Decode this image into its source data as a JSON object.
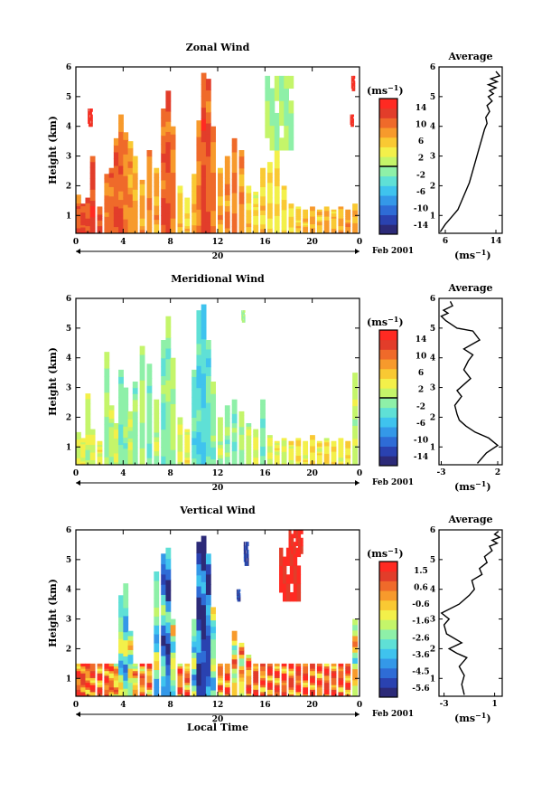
{
  "figure": {
    "date_label": "Feb 2001",
    "date_day": "20",
    "xlabel_bottom": "Local Time",
    "avg_title": "Average",
    "unit": "(ms⁻¹)",
    "ylabel": "Height (km)"
  },
  "chart_data": [
    {
      "type": "heatmap",
      "title": "Zonal Wind",
      "xlabel": "Local Time",
      "ylabel": "Height (km)",
      "x_ticks": [
        "0",
        "4",
        "8",
        "12",
        "16",
        "20",
        "0"
      ],
      "x_range": [
        0,
        24
      ],
      "y_ticks": [
        "1",
        "2",
        "3",
        "4",
        "5",
        "6"
      ],
      "y_range": [
        0.4,
        6
      ],
      "colorbar": {
        "unit": "(ms⁻¹)",
        "ticks": [
          "14",
          "10",
          "6",
          "2",
          "-2",
          "-6",
          "-10",
          "-14"
        ],
        "range": [
          -16,
          16
        ]
      },
      "columns": [
        {
          "t": 0.2,
          "top": 1.7,
          "v": 11
        },
        {
          "t": 0.6,
          "top": 1.4,
          "v": 13
        },
        {
          "t": 1.0,
          "top": 1.6,
          "v": 12
        },
        {
          "t": 1.4,
          "top": 3.0,
          "v": 13
        },
        {
          "t": 2.0,
          "top": 1.3,
          "v": 12
        },
        {
          "t": 2.6,
          "top": 2.4,
          "v": 10
        },
        {
          "t": 3.0,
          "top": 2.6,
          "v": 11
        },
        {
          "t": 3.4,
          "top": 3.6,
          "v": 12
        },
        {
          "t": 3.8,
          "top": 4.4,
          "v": 11
        },
        {
          "t": 4.2,
          "top": 3.8,
          "v": 10
        },
        {
          "t": 4.6,
          "top": 3.5,
          "v": 9
        },
        {
          "t": 5.0,
          "top": 3.0,
          "v": 8
        },
        {
          "t": 5.6,
          "top": 2.2,
          "v": 8
        },
        {
          "t": 6.2,
          "top": 3.2,
          "v": 9
        },
        {
          "t": 6.8,
          "top": 2.6,
          "v": 8
        },
        {
          "t": 7.4,
          "top": 4.6,
          "v": 11
        },
        {
          "t": 7.8,
          "top": 5.2,
          "v": 12
        },
        {
          "t": 8.2,
          "top": 4.0,
          "v": 10
        },
        {
          "t": 8.8,
          "top": 2.0,
          "v": 6
        },
        {
          "t": 9.4,
          "top": 1.6,
          "v": 5
        },
        {
          "t": 10.0,
          "top": 2.4,
          "v": 7
        },
        {
          "t": 10.4,
          "top": 4.2,
          "v": 10
        },
        {
          "t": 10.8,
          "top": 5.8,
          "v": 13
        },
        {
          "t": 11.2,
          "top": 5.6,
          "v": 12
        },
        {
          "t": 11.6,
          "top": 4.0,
          "v": 10
        },
        {
          "t": 12.2,
          "top": 2.6,
          "v": 8
        },
        {
          "t": 12.8,
          "top": 3.0,
          "v": 9
        },
        {
          "t": 13.4,
          "top": 3.6,
          "v": 10
        },
        {
          "t": 14.0,
          "top": 3.2,
          "v": 9
        },
        {
          "t": 14.6,
          "top": 2.0,
          "v": 6
        },
        {
          "t": 15.2,
          "top": 1.8,
          "v": 5
        },
        {
          "t": 15.8,
          "top": 2.6,
          "v": 6
        },
        {
          "t": 16.4,
          "top": 2.8,
          "v": 5
        },
        {
          "t": 17.0,
          "top": 3.2,
          "v": 4
        },
        {
          "t": 17.6,
          "top": 2.0,
          "v": 4
        },
        {
          "t": 18.2,
          "top": 1.4,
          "v": 5
        },
        {
          "t": 18.8,
          "top": 1.3,
          "v": 6
        },
        {
          "t": 19.4,
          "top": 1.2,
          "v": 7
        },
        {
          "t": 20.0,
          "top": 1.3,
          "v": 8
        },
        {
          "t": 20.6,
          "top": 1.2,
          "v": 7
        },
        {
          "t": 21.2,
          "top": 1.3,
          "v": 8
        },
        {
          "t": 21.8,
          "top": 1.2,
          "v": 7
        },
        {
          "t": 22.4,
          "top": 1.3,
          "v": 8
        },
        {
          "t": 23.0,
          "top": 1.2,
          "v": 9
        },
        {
          "t": 23.6,
          "top": 1.4,
          "v": 8
        }
      ],
      "patches": [
        {
          "t0": 16.0,
          "t1": 18.4,
          "z0": 3.2,
          "z1": 5.7,
          "v": 0
        },
        {
          "t0": 1.0,
          "t1": 1.4,
          "z0": 4.0,
          "z1": 4.6,
          "v": 14
        },
        {
          "t0": 23.2,
          "t1": 23.5,
          "z0": 4.0,
          "z1": 4.4,
          "v": 14
        },
        {
          "t0": 23.3,
          "t1": 23.6,
          "z0": 5.2,
          "z1": 5.7,
          "v": 14
        }
      ],
      "avg_profile": {
        "title": "Average",
        "xlabel": "(ms⁻¹)",
        "x_ticks": [
          "6",
          "14"
        ],
        "xlim": [
          5,
          15
        ],
        "y_ticks": [
          "1",
          "2",
          "3",
          "4",
          "5",
          "6"
        ],
        "ylim": [
          0.4,
          6
        ],
        "x": [
          5.2,
          6.0,
          7.0,
          8.0,
          8.6,
          9.2,
          9.8,
          10.2,
          10.6,
          11.0,
          11.4,
          11.8,
          12.2,
          12.6,
          12.4,
          13.0,
          12.6,
          13.4,
          12.8,
          13.6,
          13.0,
          14.0,
          12.8,
          14.2,
          13.2,
          14.6,
          14.0
        ],
        "y": [
          0.45,
          0.7,
          0.95,
          1.2,
          1.5,
          1.8,
          2.1,
          2.4,
          2.7,
          3.0,
          3.3,
          3.6,
          3.9,
          4.1,
          4.3,
          4.5,
          4.7,
          4.85,
          5.0,
          5.1,
          5.2,
          5.3,
          5.4,
          5.5,
          5.6,
          5.7,
          5.85
        ]
      }
    },
    {
      "type": "heatmap",
      "title": "Meridional Wind",
      "xlabel": "Local Time",
      "ylabel": "Height (km)",
      "x_ticks": [
        "0",
        "4",
        "8",
        "12",
        "16",
        "20",
        "0"
      ],
      "x_range": [
        0,
        24
      ],
      "y_ticks": [
        "1",
        "2",
        "3",
        "4",
        "5",
        "6"
      ],
      "y_range": [
        0.4,
        6
      ],
      "colorbar": {
        "unit": "(ms⁻¹)",
        "ticks": [
          "14",
          "10",
          "6",
          "2",
          "-2",
          "-6",
          "-10",
          "-14"
        ],
        "range": [
          -16,
          16
        ]
      },
      "columns": [
        {
          "t": 0.2,
          "top": 1.5,
          "v": 2
        },
        {
          "t": 0.6,
          "top": 1.3,
          "v": 3
        },
        {
          "t": 1.0,
          "top": 2.8,
          "v": 1
        },
        {
          "t": 1.4,
          "top": 1.6,
          "v": 2
        },
        {
          "t": 2.0,
          "top": 1.2,
          "v": 3
        },
        {
          "t": 2.6,
          "top": 4.2,
          "v": 0
        },
        {
          "t": 3.0,
          "top": 2.4,
          "v": 1
        },
        {
          "t": 3.4,
          "top": 1.8,
          "v": 2
        },
        {
          "t": 3.8,
          "top": 3.6,
          "v": -2
        },
        {
          "t": 4.2,
          "top": 3.0,
          "v": -1
        },
        {
          "t": 4.6,
          "top": 2.2,
          "v": 1
        },
        {
          "t": 5.0,
          "top": 3.2,
          "v": -1
        },
        {
          "t": 5.6,
          "top": 4.4,
          "v": 0
        },
        {
          "t": 6.2,
          "top": 3.8,
          "v": -2
        },
        {
          "t": 6.8,
          "top": 2.6,
          "v": 1
        },
        {
          "t": 7.4,
          "top": 4.6,
          "v": -2
        },
        {
          "t": 7.8,
          "top": 5.4,
          "v": -1
        },
        {
          "t": 8.2,
          "top": 4.0,
          "v": 0
        },
        {
          "t": 8.8,
          "top": 2.0,
          "v": 2
        },
        {
          "t": 9.4,
          "top": 1.6,
          "v": 3
        },
        {
          "t": 10.0,
          "top": 3.6,
          "v": -3
        },
        {
          "t": 10.4,
          "top": 5.6,
          "v": -4
        },
        {
          "t": 10.8,
          "top": 5.8,
          "v": -5
        },
        {
          "t": 11.2,
          "top": 4.6,
          "v": -3
        },
        {
          "t": 11.6,
          "top": 3.2,
          "v": -1
        },
        {
          "t": 12.2,
          "top": 2.0,
          "v": 1
        },
        {
          "t": 12.8,
          "top": 2.4,
          "v": -1
        },
        {
          "t": 13.4,
          "top": 2.6,
          "v": -2
        },
        {
          "t": 14.0,
          "top": 2.2,
          "v": 0
        },
        {
          "t": 14.6,
          "top": 1.8,
          "v": 1
        },
        {
          "t": 15.2,
          "top": 1.6,
          "v": 2
        },
        {
          "t": 15.8,
          "top": 2.6,
          "v": -2
        },
        {
          "t": 16.4,
          "top": 1.4,
          "v": 2
        },
        {
          "t": 17.0,
          "top": 1.2,
          "v": 3
        },
        {
          "t": 17.6,
          "top": 1.3,
          "v": 2
        },
        {
          "t": 18.2,
          "top": 1.2,
          "v": 3
        },
        {
          "t": 18.8,
          "top": 1.3,
          "v": 4
        },
        {
          "t": 19.4,
          "top": 1.2,
          "v": 3
        },
        {
          "t": 20.0,
          "top": 1.4,
          "v": 4
        },
        {
          "t": 20.6,
          "top": 1.2,
          "v": 3
        },
        {
          "t": 21.2,
          "top": 1.3,
          "v": 5
        },
        {
          "t": 21.8,
          "top": 1.2,
          "v": 4
        },
        {
          "t": 22.4,
          "top": 1.3,
          "v": 3
        },
        {
          "t": 23.0,
          "top": 1.2,
          "v": 4
        },
        {
          "t": 23.6,
          "top": 3.5,
          "v": 1
        }
      ],
      "patches": [
        {
          "t0": 14.0,
          "t1": 14.3,
          "z0": 5.2,
          "z1": 5.6,
          "v": 0
        }
      ],
      "avg_profile": {
        "title": "Average",
        "xlabel": "(ms⁻¹)",
        "x_ticks": [
          "-3",
          "2"
        ],
        "xlim": [
          -3.2,
          2.4
        ],
        "y_ticks": [
          "1",
          "2",
          "3",
          "4",
          "5",
          "6"
        ],
        "ylim": [
          0.4,
          6
        ],
        "x": [
          0.2,
          1.0,
          2.0,
          1.2,
          0.0,
          -0.8,
          -1.4,
          -1.6,
          -1.8,
          -1.2,
          -1.6,
          -1.0,
          -0.4,
          -1.0,
          -0.6,
          -0.2,
          -1.0,
          0.4,
          -0.2,
          -1.6,
          -2.2,
          -2.6,
          -3.0,
          -2.4,
          -2.8,
          -2.0,
          -2.2
        ],
        "y": [
          0.45,
          0.8,
          1.05,
          1.3,
          1.5,
          1.7,
          1.9,
          2.1,
          2.4,
          2.7,
          2.9,
          3.1,
          3.3,
          3.6,
          3.9,
          4.1,
          4.3,
          4.6,
          4.9,
          5.0,
          5.15,
          5.25,
          5.4,
          5.5,
          5.6,
          5.75,
          5.9
        ]
      }
    },
    {
      "type": "heatmap",
      "title": "Vertical Wind",
      "xlabel": "Local Time",
      "ylabel": "Height (km)",
      "x_ticks": [
        "0",
        "4",
        "8",
        "12",
        "16",
        "20",
        "0"
      ],
      "x_range": [
        0,
        24
      ],
      "y_ticks": [
        "1",
        "2",
        "3",
        "4",
        "5",
        "6"
      ],
      "y_range": [
        0.4,
        6
      ],
      "colorbar": {
        "unit": "(ms⁻¹)",
        "ticks": [
          "1.5",
          "0.6",
          "-0.6",
          "-1.6",
          "-2.6",
          "-3.6",
          "-4.5",
          "-5.6"
        ],
        "range": [
          -6.0,
          2.0
        ]
      },
      "columns": [
        {
          "t": 0.2,
          "top": 1.5,
          "v": 0.6
        },
        {
          "t": 0.6,
          "top": 1.5,
          "v": 0.8
        },
        {
          "t": 1.0,
          "top": 1.5,
          "v": 0.4
        },
        {
          "t": 1.4,
          "top": 1.5,
          "v": 0.7
        },
        {
          "t": 2.0,
          "top": 1.5,
          "v": 0.5
        },
        {
          "t": 2.6,
          "top": 1.5,
          "v": 0.8
        },
        {
          "t": 3.0,
          "top": 1.5,
          "v": 0.2
        },
        {
          "t": 3.4,
          "top": 1.5,
          "v": -0.4
        },
        {
          "t": 3.8,
          "top": 3.8,
          "v": -2.2
        },
        {
          "t": 4.2,
          "top": 4.2,
          "v": -2.8
        },
        {
          "t": 4.6,
          "top": 2.6,
          "v": -1.8
        },
        {
          "t": 5.0,
          "top": 1.5,
          "v": -0.6
        },
        {
          "t": 5.6,
          "top": 1.5,
          "v": 0.3
        },
        {
          "t": 6.2,
          "top": 1.5,
          "v": 0.2
        },
        {
          "t": 6.8,
          "top": 4.6,
          "v": -2.6
        },
        {
          "t": 7.4,
          "top": 5.2,
          "v": -3.8
        },
        {
          "t": 7.8,
          "top": 5.4,
          "v": -4.4
        },
        {
          "t": 8.2,
          "top": 3.0,
          "v": -2.0
        },
        {
          "t": 8.8,
          "top": 1.5,
          "v": 0.4
        },
        {
          "t": 9.4,
          "top": 1.5,
          "v": 0.2
        },
        {
          "t": 10.0,
          "top": 3.0,
          "v": -2.6
        },
        {
          "t": 10.4,
          "top": 5.6,
          "v": -5.0
        },
        {
          "t": 10.8,
          "top": 5.8,
          "v": -5.4
        },
        {
          "t": 11.2,
          "top": 5.2,
          "v": -4.6
        },
        {
          "t": 11.6,
          "top": 3.4,
          "v": -2.4
        },
        {
          "t": 12.2,
          "top": 1.5,
          "v": 0.1
        },
        {
          "t": 12.8,
          "top": 1.5,
          "v": 0.6
        },
        {
          "t": 13.4,
          "top": 2.6,
          "v": -1.0
        },
        {
          "t": 14.0,
          "top": 2.2,
          "v": -0.8
        },
        {
          "t": 14.6,
          "top": 1.8,
          "v": 0.3
        },
        {
          "t": 15.2,
          "top": 1.5,
          "v": 0.8
        },
        {
          "t": 15.8,
          "top": 1.5,
          "v": 0.5
        },
        {
          "t": 16.4,
          "top": 1.5,
          "v": 0.9
        },
        {
          "t": 17.0,
          "top": 1.5,
          "v": 0.6
        },
        {
          "t": 17.6,
          "top": 1.5,
          "v": 0.8
        },
        {
          "t": 18.2,
          "top": 1.5,
          "v": 0.5
        },
        {
          "t": 18.8,
          "top": 1.5,
          "v": 0.9
        },
        {
          "t": 19.4,
          "top": 1.5,
          "v": 0.7
        },
        {
          "t": 20.0,
          "top": 1.5,
          "v": 0.8
        },
        {
          "t": 20.6,
          "top": 1.5,
          "v": 0.6
        },
        {
          "t": 21.2,
          "top": 1.5,
          "v": 0.9
        },
        {
          "t": 21.8,
          "top": 1.5,
          "v": 0.7
        },
        {
          "t": 22.4,
          "top": 1.5,
          "v": 0.8
        },
        {
          "t": 23.0,
          "top": 1.5,
          "v": 0.6
        },
        {
          "t": 23.6,
          "top": 3.0,
          "v": -1.2
        }
      ],
      "patches": [
        {
          "t0": 17.2,
          "t1": 19.0,
          "z0": 3.6,
          "z1": 5.4,
          "v": 1.8
        },
        {
          "t0": 18.0,
          "t1": 19.2,
          "z0": 5.2,
          "z1": 6.0,
          "v": 1.8
        },
        {
          "t0": 14.2,
          "t1": 14.6,
          "z0": 4.8,
          "z1": 5.6,
          "v": -5.2
        },
        {
          "t0": 13.6,
          "t1": 13.9,
          "z0": 3.6,
          "z1": 4.0,
          "v": -5.0
        }
      ],
      "avg_profile": {
        "title": "Average",
        "xlabel": "(ms⁻¹)",
        "x_ticks": [
          "-3",
          "1"
        ],
        "xlim": [
          -3.4,
          1.6
        ],
        "y_ticks": [
          "1",
          "2",
          "3",
          "4",
          "5",
          "6"
        ],
        "ylim": [
          0.4,
          6
        ],
        "x": [
          -1.4,
          -1.6,
          -1.4,
          -1.8,
          -1.2,
          -2.0,
          -2.6,
          -1.6,
          -2.8,
          -3.0,
          -2.6,
          -3.2,
          -1.8,
          -1.0,
          -0.6,
          -0.8,
          0.0,
          -0.2,
          0.4,
          0.2,
          0.8,
          0.6,
          1.2,
          0.8,
          1.4,
          1.0,
          1.3
        ],
        "y": [
          0.45,
          0.8,
          1.1,
          1.4,
          1.7,
          1.85,
          2.0,
          2.2,
          2.5,
          2.8,
          3.0,
          3.2,
          3.5,
          3.8,
          4.0,
          4.3,
          4.5,
          4.7,
          4.9,
          5.1,
          5.3,
          5.45,
          5.55,
          5.65,
          5.75,
          5.85,
          5.95
        ]
      }
    }
  ]
}
